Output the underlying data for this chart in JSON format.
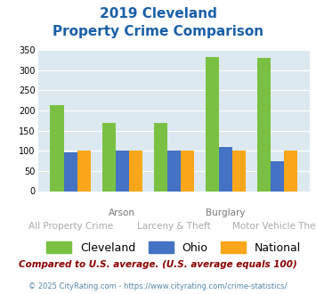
{
  "title_line1": "2019 Cleveland",
  "title_line2": "Property Crime Comparison",
  "categories": [
    "All Property Crime",
    "Arson",
    "Larceny & Theft",
    "Burglary",
    "Motor Vehicle Theft"
  ],
  "x_labels_top": [
    "",
    "Arson",
    "",
    "Burglary",
    ""
  ],
  "x_labels_bottom": [
    "All Property Crime",
    "",
    "Larceny & Theft",
    "",
    "Motor Vehicle Theft"
  ],
  "cleveland": [
    213,
    168,
    168,
    333,
    330
  ],
  "ohio": [
    97,
    100,
    100,
    110,
    73
  ],
  "national": [
    100,
    100,
    100,
    100,
    100
  ],
  "cleveland_color": "#7ac143",
  "ohio_color": "#4472c4",
  "national_color": "#faa61a",
  "bg_color": "#dce9f0",
  "title_color": "#1a5fa8",
  "ylim": [
    0,
    350
  ],
  "yticks": [
    0,
    50,
    100,
    150,
    200,
    250,
    300,
    350
  ],
  "footnote": "Compared to U.S. average. (U.S. average equals 100)",
  "footnote2": "© 2025 CityRating.com - https://www.cityrating.com/crime-statistics/",
  "footnote_color": "#8b0000",
  "footnote2_color": "#5588aa"
}
